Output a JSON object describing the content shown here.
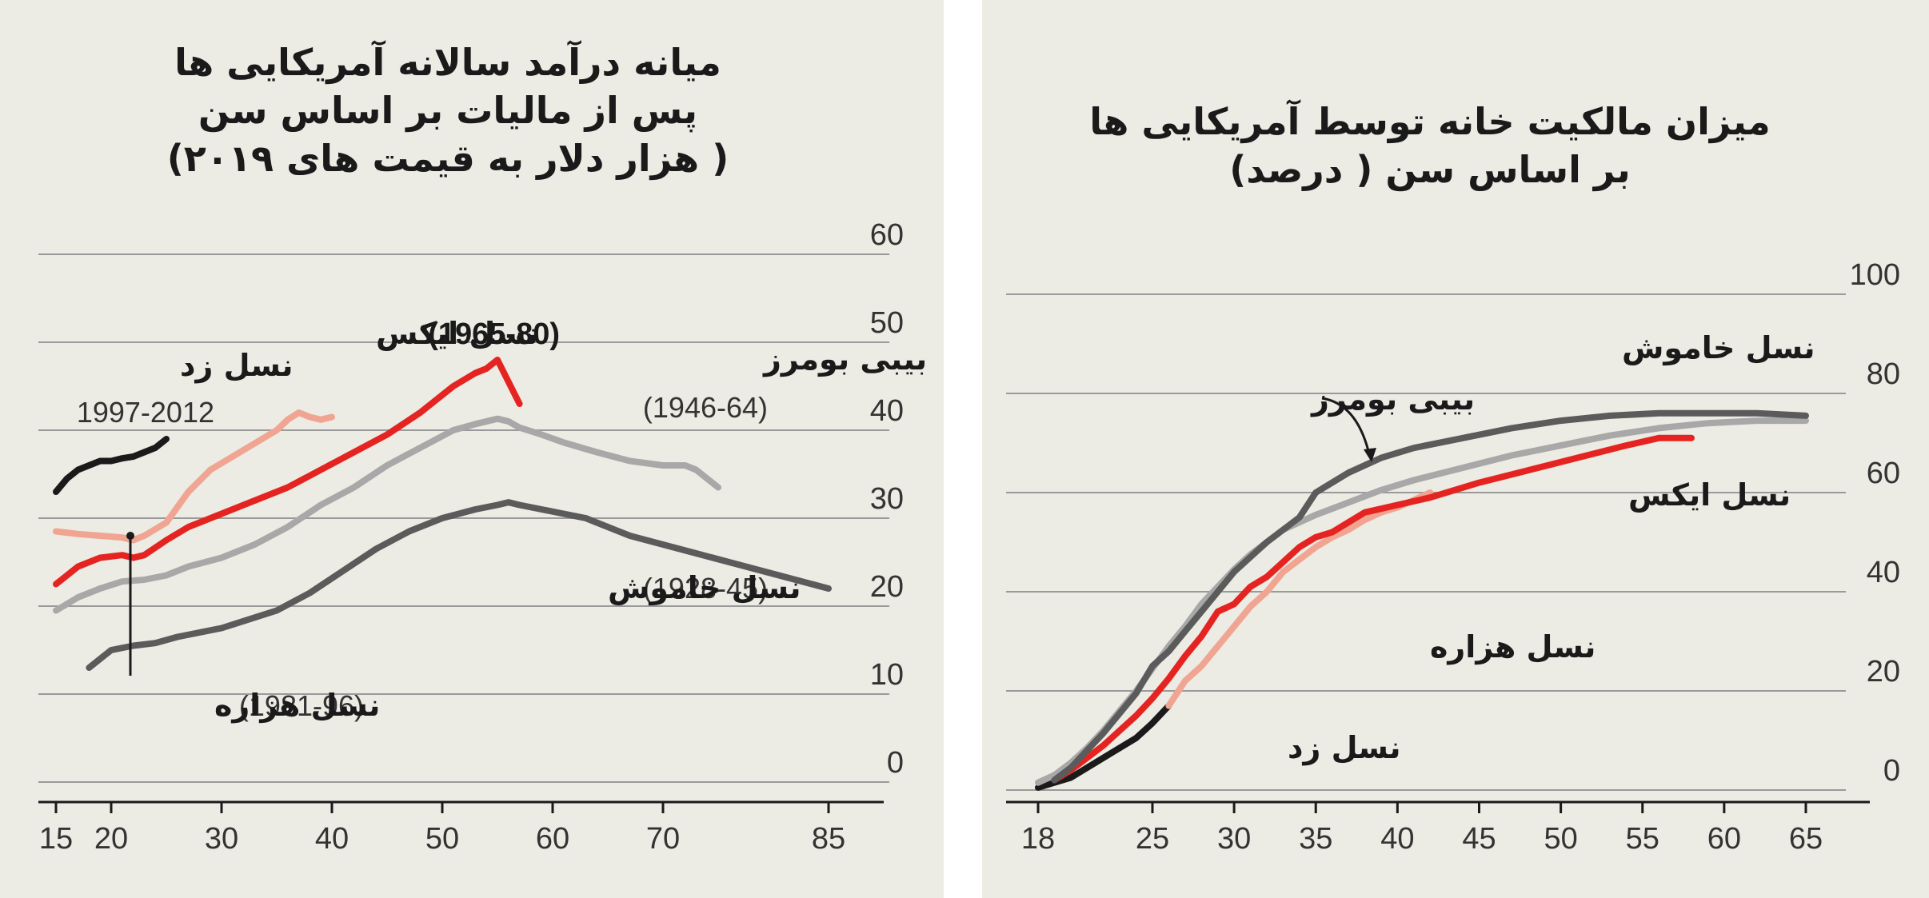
{
  "chart_data": [
    {
      "type": "line",
      "title": "میانه درآمد سالانه آمریکایی ها",
      "subtitle": "پس از مالیات بر اساس سن",
      "units_note": "( هزار دلار به قیمت های ۲۰۱۹)",
      "ylim": [
        0,
        60
      ],
      "xlim": [
        15,
        85
      ],
      "y_ticks": [
        "0",
        "10",
        "20",
        "30",
        "40",
        "50",
        "60"
      ],
      "x_ticks": [
        "15",
        "20",
        "30",
        "40",
        "50",
        "60",
        "70",
        "85"
      ],
      "grid": true,
      "series": [
        {
          "name": "نسل زد",
          "years": "1997-2012",
          "color": "#1a1a1a",
          "x": [
            15,
            16,
            17,
            18,
            19,
            20,
            21,
            22,
            23,
            24,
            25
          ],
          "y": [
            33,
            34.5,
            35.5,
            36,
            36.5,
            36.5,
            36.8,
            37,
            37.5,
            38,
            39
          ]
        },
        {
          "name": "نسل هزاره",
          "years": "1981-96",
          "color": "#f0a592",
          "x": [
            15,
            17,
            19,
            21,
            22,
            23,
            25,
            27,
            29,
            31,
            33,
            35,
            36,
            37,
            38,
            39,
            40
          ],
          "y": [
            28.5,
            28.2,
            28,
            27.8,
            27.5,
            28,
            29.5,
            33,
            35.5,
            37,
            38.5,
            40,
            41.2,
            42,
            41.5,
            41.2,
            41.5
          ]
        },
        {
          "name": "نسل ایکس",
          "years": "1965-80",
          "color": "#e52421",
          "x": [
            15,
            17,
            19,
            21,
            22,
            23,
            25,
            27,
            30,
            33,
            36,
            39,
            42,
            45,
            48,
            51,
            53,
            54,
            55,
            56,
            57
          ],
          "y": [
            22.5,
            24.5,
            25.5,
            25.8,
            25.5,
            25.8,
            27.5,
            29,
            30.5,
            32,
            33.5,
            35.5,
            37.5,
            39.5,
            42,
            45,
            46.5,
            47,
            48,
            45.5,
            43
          ]
        },
        {
          "name": "بیبی بومرز",
          "years": "1946-64",
          "color": "#a8a8a8",
          "x": [
            15,
            17,
            19,
            21,
            23,
            25,
            27,
            30,
            33,
            36,
            39,
            42,
            45,
            48,
            51,
            53,
            55,
            56,
            57,
            59,
            61,
            64,
            67,
            70,
            72,
            73,
            74,
            75
          ],
          "y": [
            19.5,
            21,
            22,
            22.8,
            23,
            23.5,
            24.5,
            25.5,
            27,
            29,
            31.5,
            33.5,
            36,
            38,
            40,
            40.7,
            41.3,
            41,
            40.3,
            39.5,
            38.6,
            37.5,
            36.5,
            36,
            36,
            35.5,
            34.5,
            33.5
          ]
        },
        {
          "name": "نسل خاموش",
          "years": "1928-45",
          "color": "#5b5b5b",
          "x": [
            18,
            20,
            22,
            24,
            26,
            28,
            30,
            32,
            35,
            38,
            41,
            44,
            47,
            50,
            53,
            55,
            56,
            57,
            59,
            61,
            63,
            65,
            67,
            70,
            73,
            76,
            79,
            82,
            85
          ],
          "y": [
            13,
            15,
            15.5,
            15.8,
            16.5,
            17,
            17.5,
            18.3,
            19.5,
            21.5,
            24,
            26.5,
            28.5,
            30,
            31,
            31.5,
            31.8,
            31.5,
            31,
            30.5,
            30,
            29,
            28,
            27,
            26,
            25,
            24,
            23,
            22
          ]
        }
      ],
      "labels": {
        "gen_z": "نسل زد",
        "gen_z_years": "1997-2012",
        "gen_x": "نسل ایکس",
        "gen_x_years": "(1965-80)",
        "boomers": "بیبی بومرز",
        "boomers_years": "(1946-64)",
        "silent_years": "(1928-45)",
        "silent": "نسل خاموش",
        "millennial_years": "(1981-96)",
        "millennial": "نسل هزاره"
      }
    },
    {
      "type": "line",
      "title": "میزان مالکیت خانه توسط آمریکایی ها",
      "subtitle": "بر اساس سن ( درصد)",
      "ylim": [
        0,
        100
      ],
      "xlim": [
        18,
        65
      ],
      "y_ticks": [
        "0",
        "20",
        "40",
        "60",
        "80",
        "100"
      ],
      "x_ticks": [
        "18",
        "25",
        "30",
        "35",
        "40",
        "45",
        "50",
        "55",
        "60",
        "65"
      ],
      "grid": true,
      "series": [
        {
          "name": "نسل زد",
          "color": "#1a1a1a",
          "x": [
            18,
            19,
            20,
            21,
            22,
            23,
            24,
            25,
            26
          ],
          "y": [
            0.5,
            1.5,
            2.5,
            4.5,
            6.5,
            8.5,
            10.5,
            13.5,
            17
          ]
        },
        {
          "name": "نسل هزاره",
          "color": "#f0a592",
          "x": [
            26,
            27,
            28,
            29,
            30,
            31,
            32,
            33,
            34,
            35,
            36,
            37,
            38,
            39,
            40,
            41,
            42
          ],
          "y": [
            17,
            22,
            25,
            29,
            33,
            37,
            40,
            44,
            46.5,
            49,
            51,
            52.5,
            54.5,
            56,
            57,
            58.5,
            60
          ]
        },
        {
          "name": "نسل ایکس",
          "color": "#e52421",
          "x": [
            19,
            20,
            21,
            22,
            23,
            24,
            25,
            26,
            27,
            28,
            29,
            30,
            31,
            32,
            33,
            34,
            35,
            36,
            37,
            38,
            42,
            45,
            48,
            51,
            54,
            56,
            58
          ],
          "y": [
            2,
            4,
            6.5,
            9,
            12,
            15,
            18.5,
            22.5,
            27,
            31,
            36,
            37.5,
            41,
            43,
            46,
            49,
            51,
            52,
            54,
            56,
            59,
            62,
            64.5,
            67,
            69.5,
            71,
            71
          ]
        },
        {
          "name": "بیبی بومرز",
          "color": "#a8a8a8",
          "x": [
            18,
            19,
            20,
            21,
            22,
            23,
            24,
            25,
            26,
            27,
            28,
            29,
            30,
            31,
            32,
            33,
            35,
            37,
            39,
            41,
            44,
            47,
            50,
            53,
            56,
            59,
            62,
            65
          ],
          "y": [
            1.5,
            3,
            5.5,
            8.5,
            12,
            16,
            20,
            24.5,
            29,
            33,
            37.5,
            41,
            44.5,
            47.5,
            50,
            52.5,
            55.5,
            58,
            60.5,
            62.5,
            65,
            67.5,
            69.5,
            71.5,
            73,
            74,
            74.5,
            74.5
          ]
        },
        {
          "name": "نسل خاموش",
          "color": "#5b5b5b",
          "x": [
            19,
            20,
            21,
            22,
            23,
            24,
            25,
            26,
            27,
            28,
            29,
            30,
            31,
            32,
            33,
            34,
            35,
            37,
            39,
            41,
            44,
            47,
            50,
            53,
            56,
            59,
            62,
            65
          ],
          "y": [
            2,
            4.5,
            8,
            11.5,
            15.5,
            19.5,
            25,
            28,
            32,
            36,
            40,
            44,
            47,
            50,
            52.5,
            55,
            60,
            64,
            67,
            69,
            71,
            73,
            74.5,
            75.5,
            76,
            76,
            76,
            75.5
          ]
        }
      ],
      "labels": {
        "silent": "نسل خاموش",
        "boomers": "بیبی بومرز",
        "gen_x": "نسل ایکس",
        "millennial": "نسل هزاره",
        "gen_z": "نسل زد"
      }
    }
  ]
}
